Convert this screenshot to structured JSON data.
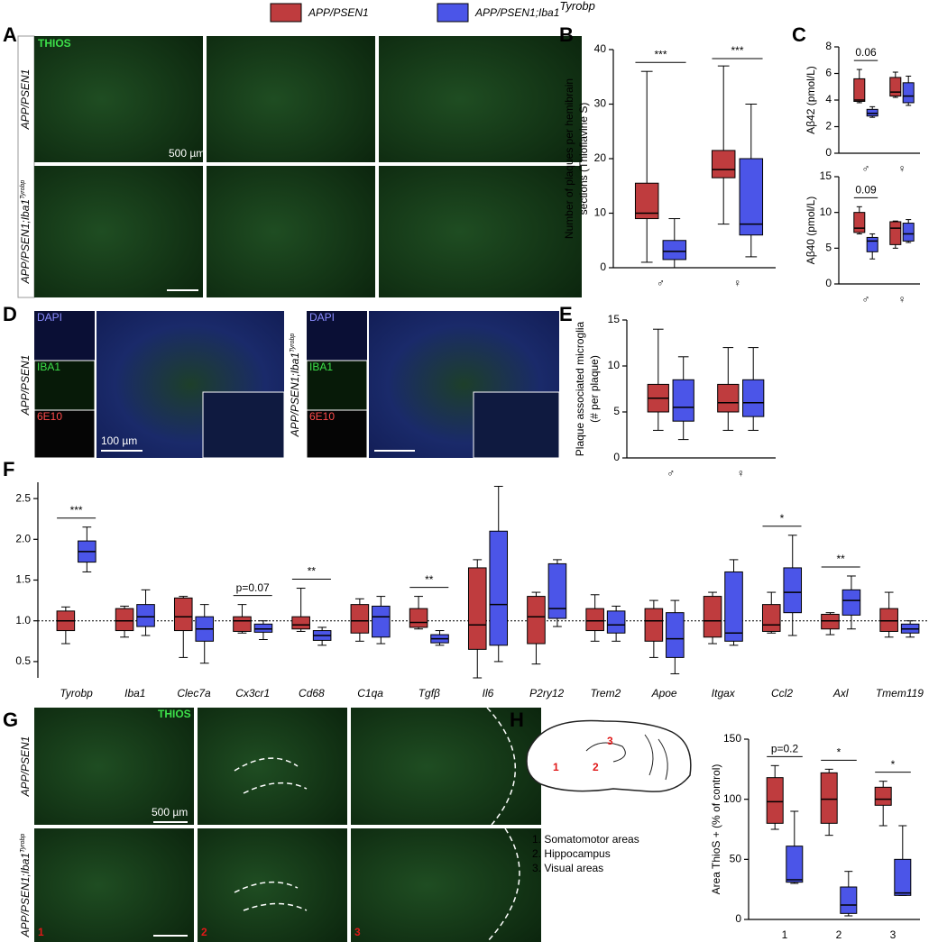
{
  "legend": [
    {
      "text": "APP/PSEN1",
      "color": "#bf3c3e"
    },
    {
      "text": "APP/PSEN1;Iba1",
      "sup": "Tyrobp",
      "color": "#4b55e8"
    }
  ],
  "panel_labels": [
    "A",
    "B",
    "C",
    "D",
    "E",
    "F",
    "G",
    "H"
  ],
  "images": {
    "A": {
      "stain": "THIOS",
      "scale_bar": "500 µm"
    },
    "D": {
      "channels": [
        "DAPI",
        "IBA1",
        "6E10"
      ],
      "scale_bar": "100 µm"
    },
    "G": {
      "stain": "THIOS",
      "scale_bar": "500 µm",
      "regions": [
        "1",
        "2",
        "3"
      ]
    },
    "row_labels": [
      {
        "text": "APP/PSEN1"
      },
      {
        "text": "APP/PSEN1;Iba1",
        "sup": "Tyrobp"
      }
    ]
  },
  "diagram": {
    "regions": [
      "1",
      "2",
      "3"
    ],
    "key": [
      "1. Somatomotor areas",
      "2. Hippocampus",
      "3. Visual areas"
    ]
  },
  "chart_data": [
    {
      "type": "box",
      "ylabel": [
        "Number of plaques per hemibrain",
        "sections (Thioflavine S)"
      ],
      "categories": [
        "♂",
        "♀"
      ],
      "ylim": [
        0,
        40
      ],
      "yticks": [
        0,
        10,
        20,
        30,
        40
      ],
      "significance": [
        "***",
        "***"
      ],
      "series": [
        {
          "color": "#bf3c3e",
          "boxes": [
            [
              1,
              9,
              10,
              15.5,
              36
            ],
            [
              8,
              16.5,
              18,
              21.5,
              37
            ]
          ]
        },
        {
          "color": "#4b55e8",
          "boxes": [
            [
              0,
              1.5,
              3,
              5,
              9
            ],
            [
              2,
              6,
              8,
              20,
              30
            ]
          ]
        }
      ]
    },
    {
      "type": "box",
      "ylabel": [
        "Aβ42 (pmol/L)"
      ],
      "categories": [
        "♂",
        "♀"
      ],
      "ylim": [
        0,
        8
      ],
      "yticks": [
        0,
        2,
        4,
        6,
        8
      ],
      "significance": [
        "0.06",
        null
      ],
      "series": [
        {
          "color": "#bf3c3e",
          "boxes": [
            [
              3.8,
              3.9,
              4,
              5.6,
              6.3
            ],
            [
              4.2,
              4.3,
              4.6,
              5.7,
              6.1
            ]
          ]
        },
        {
          "color": "#4b55e8",
          "boxes": [
            [
              2.7,
              2.8,
              3,
              3.3,
              3.5
            ],
            [
              3.6,
              3.8,
              4.3,
              5.3,
              5.8
            ]
          ]
        }
      ]
    },
    {
      "type": "box",
      "ylabel": [
        "Aβ40 (pmol/L)"
      ],
      "categories": [
        "♂",
        "♀"
      ],
      "ylim": [
        0,
        15
      ],
      "yticks": [
        0,
        5,
        10,
        15
      ],
      "significance": [
        "0.09",
        null
      ],
      "series": [
        {
          "color": "#bf3c3e",
          "boxes": [
            [
              7,
              7.2,
              7.8,
              10,
              10.8
            ],
            [
              5,
              5.5,
              7.8,
              8.7,
              8.8
            ]
          ]
        },
        {
          "color": "#4b55e8",
          "boxes": [
            [
              3.5,
              4.5,
              6,
              6.5,
              7
            ],
            [
              5.8,
              6,
              7,
              8.5,
              9
            ]
          ]
        }
      ]
    },
    {
      "type": "box",
      "ylabel": [
        "Plaque associated microglia",
        "(# per plaque)"
      ],
      "categories": [
        "♂",
        "♀"
      ],
      "ylim": [
        0,
        15
      ],
      "yticks": [
        0,
        5,
        10,
        15
      ],
      "series": [
        {
          "color": "#bf3c3e",
          "boxes": [
            [
              3,
              5,
              6.5,
              8,
              14
            ],
            [
              3,
              5,
              6,
              8,
              12
            ]
          ]
        },
        {
          "color": "#4b55e8",
          "boxes": [
            [
              2,
              4,
              5.5,
              8.5,
              11
            ],
            [
              3,
              4.5,
              6,
              8.5,
              12
            ]
          ]
        }
      ]
    },
    {
      "type": "box",
      "italic_categories": true,
      "categories": [
        "Tyrobp",
        "Iba1",
        "Clec7a",
        "Cx3cr1",
        "Cd68",
        "C1qa",
        "Tgfβ",
        "Il6",
        "P2ry12",
        "Trem2",
        "Apoe",
        "Itgax",
        "Ccl2",
        "Axl",
        "Tmem119"
      ],
      "ylim": [
        0.3,
        2.7
      ],
      "yticks": [
        0.5,
        {
          "value": 1,
          "label": "1.0"
        },
        1.5,
        {
          "value": 2,
          "label": "2.0"
        },
        2.5
      ],
      "reference_line": 1,
      "significance": [
        "***",
        null,
        null,
        "p=0.07",
        "**",
        null,
        "**",
        null,
        null,
        null,
        null,
        null,
        "*",
        "**",
        null
      ],
      "series": [
        {
          "color": "#bf3c3e",
          "boxes": [
            [
              0.72,
              0.88,
              1.0,
              1.12,
              1.17
            ],
            [
              0.8,
              0.88,
              1.0,
              1.15,
              1.18
            ],
            [
              0.55,
              0.88,
              1.05,
              1.28,
              1.3
            ],
            [
              0.85,
              0.87,
              1.0,
              1.05,
              1.2
            ],
            [
              0.87,
              0.9,
              0.95,
              1.05,
              1.4
            ],
            [
              0.75,
              0.85,
              1.0,
              1.2,
              1.27
            ],
            [
              0.9,
              0.92,
              0.98,
              1.15,
              1.3
            ],
            [
              0.3,
              0.65,
              0.95,
              1.65,
              1.75
            ],
            [
              0.47,
              0.72,
              1.05,
              1.3,
              1.35
            ],
            [
              0.75,
              0.88,
              1.0,
              1.15,
              1.32
            ],
            [
              0.55,
              0.75,
              1.0,
              1.15,
              1.25
            ],
            [
              0.72,
              0.8,
              1.0,
              1.3,
              1.35
            ],
            [
              0.85,
              0.87,
              0.95,
              1.2,
              1.35
            ],
            [
              0.83,
              0.9,
              1.0,
              1.08,
              1.1
            ],
            [
              0.8,
              0.87,
              1.0,
              1.15,
              1.35
            ]
          ]
        },
        {
          "color": "#4b55e8",
          "boxes": [
            [
              1.6,
              1.72,
              1.85,
              1.98,
              2.15
            ],
            [
              0.82,
              0.93,
              1.05,
              1.2,
              1.38
            ],
            [
              0.48,
              0.75,
              0.9,
              1.05,
              1.2
            ],
            [
              0.77,
              0.86,
              0.9,
              0.96,
              1.0
            ],
            [
              0.7,
              0.76,
              0.82,
              0.88,
              0.92
            ],
            [
              0.72,
              0.8,
              1.05,
              1.18,
              1.3
            ],
            [
              0.7,
              0.73,
              0.78,
              0.83,
              0.88
            ],
            [
              0.5,
              0.7,
              1.2,
              2.1,
              2.65
            ],
            [
              0.93,
              1.03,
              1.15,
              1.7,
              1.75
            ],
            [
              0.75,
              0.85,
              0.95,
              1.12,
              1.18
            ],
            [
              0.35,
              0.55,
              0.78,
              1.1,
              1.25
            ],
            [
              0.7,
              0.75,
              0.85,
              1.6,
              1.75
            ],
            [
              0.82,
              1.1,
              1.35,
              1.65,
              2.05
            ],
            [
              0.9,
              1.07,
              1.25,
              1.38,
              1.55
            ],
            [
              0.8,
              0.85,
              0.9,
              0.96,
              1.0
            ]
          ]
        }
      ]
    },
    {
      "type": "box",
      "ylabel": [
        "Area ThioS + (% of control)"
      ],
      "categories": [
        "1",
        "2",
        "3"
      ],
      "ylim": [
        0,
        150
      ],
      "yticks": [
        0,
        50,
        100,
        150
      ],
      "significance": [
        "p=0.2",
        "*",
        "*"
      ],
      "series": [
        {
          "color": "#bf3c3e",
          "boxes": [
            [
              75,
              80,
              98,
              118,
              128
            ],
            [
              70,
              80,
              100,
              122,
              125
            ],
            [
              78,
              95,
              100,
              110,
              115
            ]
          ]
        },
        {
          "color": "#4b55e8",
          "boxes": [
            [
              30,
              31,
              33,
              61,
              90
            ],
            [
              3,
              5,
              12,
              27,
              40
            ],
            [
              20,
              20,
              22,
              50,
              78
            ]
          ]
        }
      ]
    }
  ]
}
